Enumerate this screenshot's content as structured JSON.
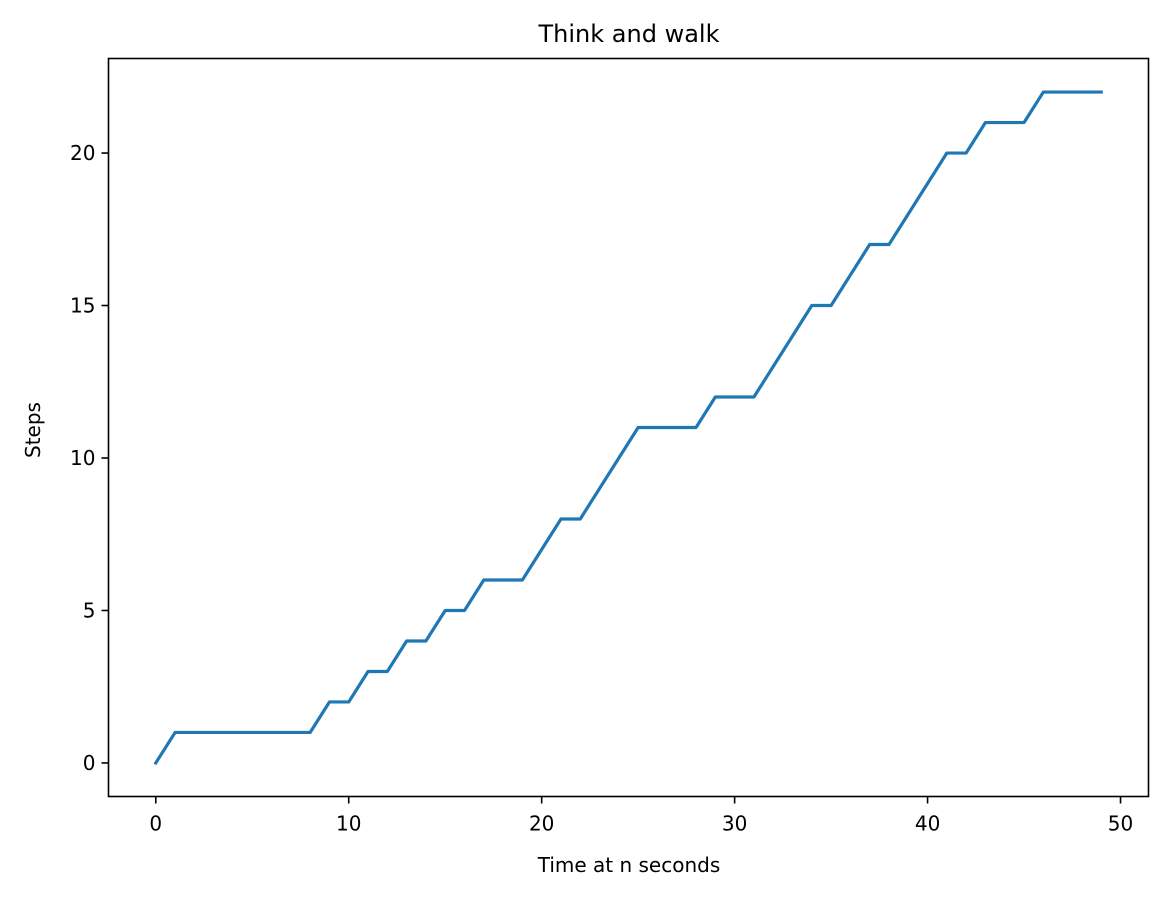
{
  "chart_data": {
    "type": "line",
    "title": "Think and walk",
    "xlabel": "Time at n seconds",
    "ylabel": "Steps",
    "xlim": [
      -2.45,
      51.45
    ],
    "ylim": [
      -1.1,
      23.1
    ],
    "xticks": [
      0,
      10,
      20,
      30,
      40,
      50
    ],
    "yticks": [
      0,
      5,
      10,
      15,
      20
    ],
    "grid": false,
    "legend": "none",
    "series": [
      {
        "color": "#1f77b4",
        "x": [
          0,
          1,
          2,
          3,
          4,
          5,
          6,
          7,
          8,
          9,
          10,
          11,
          12,
          13,
          14,
          15,
          16,
          17,
          18,
          19,
          20,
          21,
          22,
          23,
          24,
          25,
          26,
          27,
          28,
          29,
          30,
          31,
          32,
          33,
          34,
          35,
          36,
          37,
          38,
          39,
          40,
          41,
          42,
          43,
          44,
          45,
          46,
          47,
          48,
          49
        ],
        "y": [
          0,
          1,
          1,
          1,
          1,
          1,
          1,
          1,
          1,
          2,
          2,
          3,
          3,
          4,
          4,
          5,
          5,
          6,
          6,
          6,
          7,
          8,
          8,
          9,
          10,
          11,
          11,
          11,
          11,
          12,
          12,
          12,
          13,
          14,
          15,
          15,
          16,
          17,
          17,
          18,
          19,
          20,
          20,
          21,
          21,
          21,
          22,
          22,
          22,
          22
        ]
      }
    ]
  }
}
